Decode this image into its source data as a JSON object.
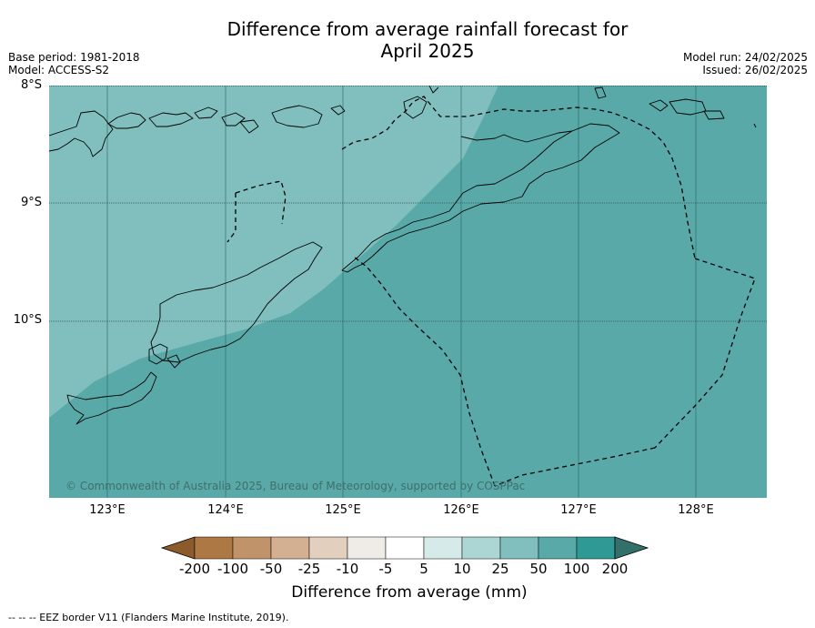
{
  "title_line1": "Difference from average rainfall forecast for",
  "title_line2": "April 2025",
  "meta": {
    "base_period": "Base period: 1981-2018",
    "model": "Model: ACCESS-S2",
    "model_run": "Model run: 24/02/2025",
    "issued": "Issued: 26/02/2025"
  },
  "map": {
    "lat_labels": [
      "8°S",
      "9°S",
      "10°S"
    ],
    "lon_labels": [
      "123°E",
      "124°E",
      "125°E",
      "126°E",
      "127°E",
      "128°E"
    ],
    "copyright": "© Commonwealth of Australia 2025, Bureau of Meteorology, supported by COSPPac",
    "forecast_categories": [
      {
        "range": "25 to 50 mm",
        "color": "#80bfbd"
      },
      {
        "range": "50 to 100 mm",
        "color": "#5aa9a9"
      }
    ]
  },
  "legend": {
    "title": "Difference from average (mm)",
    "ticks": [
      "-200",
      "-100",
      "-50",
      "-25",
      "-10",
      "-5",
      "5",
      "10",
      "25",
      "50",
      "100",
      "200"
    ],
    "colors": [
      "#8c5a2b",
      "#ad7843",
      "#c1936b",
      "#d4b092",
      "#e3cfbd",
      "#efebe7",
      "#ffffff",
      "#d6ebe9",
      "#acd6d4",
      "#80bfbd",
      "#5aa9a9",
      "#2f9995",
      "#33706c"
    ]
  },
  "eez_note": "--  --  -- EEZ border V11 (Flanders Marine Institute, 2019)."
}
